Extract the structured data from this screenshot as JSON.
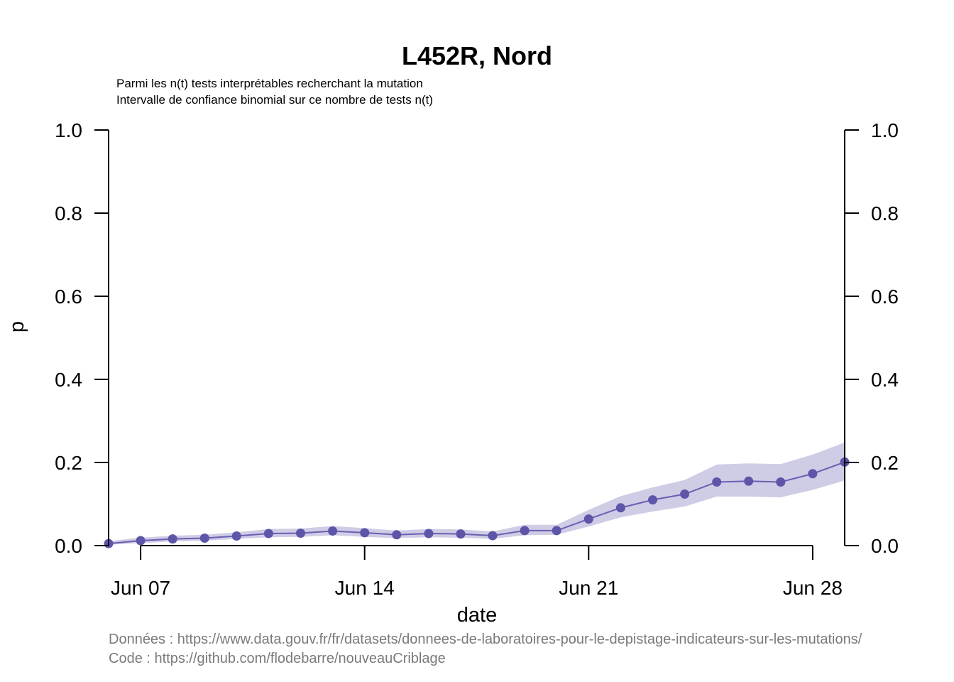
{
  "colors": {
    "line": "#6a5fb0",
    "point": "#5d55a7",
    "band": "#cfcce6",
    "caption": "#7a7a7a",
    "axis": "#000000"
  },
  "caption": {
    "line1": "Données : https://www.data.gouv.fr/fr/datasets/donnees-de-laboratoires-pour-le-depistage-indicateurs-sur-les-mutations/",
    "line2": "Code : https://github.com/flodebarre/nouveauCriblage"
  },
  "chart_data": {
    "type": "line",
    "title": "L452R, Nord",
    "subtitle": [
      "Parmi les n(t) tests interprétables recherchant la mutation",
      "Intervalle de confiance binomial sur ce nombre de tests n(t)"
    ],
    "xlabel": "date",
    "ylabel": "p",
    "x": [
      "Jun 06",
      "Jun 07",
      "Jun 08",
      "Jun 09",
      "Jun 10",
      "Jun 11",
      "Jun 12",
      "Jun 13",
      "Jun 14",
      "Jun 15",
      "Jun 16",
      "Jun 17",
      "Jun 18",
      "Jun 19",
      "Jun 20",
      "Jun 21",
      "Jun 22",
      "Jun 23",
      "Jun 24",
      "Jun 25",
      "Jun 26",
      "Jun 27",
      "Jun 28",
      "Jun 29"
    ],
    "xlim": [
      "Jun 06",
      "Jun 29"
    ],
    "x_ticks": [
      "Jun 07",
      "Jun 14",
      "Jun 21",
      "Jun 28"
    ],
    "ylim": [
      0,
      1
    ],
    "y_ticks": [
      "0.0",
      "0.2",
      "0.4",
      "0.6",
      "0.8",
      "1.0"
    ],
    "right_axis": true,
    "grid": false,
    "series": [
      {
        "values": [
          0.005,
          0.012,
          0.016,
          0.018,
          0.023,
          0.029,
          0.03,
          0.035,
          0.031,
          0.026,
          0.029,
          0.028,
          0.024,
          0.036,
          0.036,
          0.064,
          0.091,
          0.11,
          0.124,
          0.153,
          0.155,
          0.153,
          0.173,
          0.201
        ],
        "lower": [
          0.002,
          0.006,
          0.01,
          0.012,
          0.016,
          0.02,
          0.021,
          0.025,
          0.021,
          0.018,
          0.02,
          0.019,
          0.016,
          0.025,
          0.026,
          0.046,
          0.068,
          0.082,
          0.094,
          0.118,
          0.118,
          0.116,
          0.134,
          0.157
        ],
        "upper": [
          0.011,
          0.019,
          0.024,
          0.026,
          0.032,
          0.04,
          0.041,
          0.047,
          0.042,
          0.036,
          0.04,
          0.039,
          0.034,
          0.05,
          0.05,
          0.086,
          0.119,
          0.14,
          0.158,
          0.195,
          0.198,
          0.196,
          0.219,
          0.248
        ]
      }
    ]
  }
}
